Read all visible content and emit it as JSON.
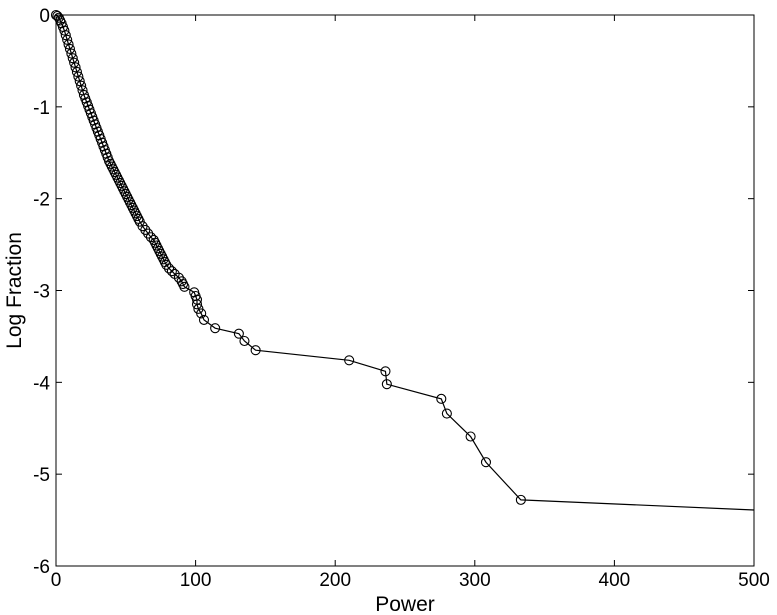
{
  "chart_data": {
    "type": "line",
    "title": "",
    "xlabel": "Power",
    "ylabel": "Log Fraction",
    "xlim": [
      0,
      500
    ],
    "ylim": [
      -6,
      0
    ],
    "xticks": [
      0,
      100,
      200,
      300,
      400,
      500
    ],
    "xtick_labels": [
      "0",
      "100",
      "200",
      "300",
      "400",
      "500"
    ],
    "yticks": [
      0,
      -1,
      -2,
      -3,
      -4,
      -5,
      -6
    ],
    "ytick_labels": [
      "0",
      "-1",
      "-2",
      "-3",
      "-4",
      "-5",
      "-6"
    ],
    "grid": false,
    "line_color": "#000000",
    "marker": "open-circle",
    "series": [
      {
        "x": [
          0,
          1,
          2,
          3,
          4,
          5,
          6,
          7,
          8,
          9,
          10,
          11,
          12,
          13,
          14,
          15,
          16,
          17,
          18,
          19,
          20,
          21,
          22,
          23,
          24,
          25,
          26,
          27,
          28,
          29,
          30,
          31,
          32,
          33,
          34,
          35,
          36,
          37,
          38,
          39,
          40,
          41,
          42,
          43,
          44,
          45,
          46,
          47,
          48,
          49,
          50,
          51,
          52,
          53,
          54,
          55,
          56,
          57,
          58,
          59,
          60,
          62,
          64,
          66,
          68,
          70,
          71,
          72,
          73,
          74,
          75,
          76,
          77,
          78,
          79,
          81,
          83,
          85,
          88,
          90,
          91,
          92,
          99,
          100,
          101,
          101,
          102,
          104,
          106,
          114,
          131,
          135,
          143,
          210,
          236,
          237,
          276,
          280,
          297,
          308,
          333,
          500
        ],
        "y": [
          0.0,
          -0.01,
          -0.03,
          -0.06,
          -0.09,
          -0.13,
          -0.17,
          -0.22,
          -0.27,
          -0.32,
          -0.37,
          -0.42,
          -0.47,
          -0.52,
          -0.57,
          -0.62,
          -0.67,
          -0.72,
          -0.77,
          -0.82,
          -0.87,
          -0.91,
          -0.95,
          -0.99,
          -1.03,
          -1.07,
          -1.11,
          -1.15,
          -1.19,
          -1.23,
          -1.27,
          -1.31,
          -1.35,
          -1.39,
          -1.43,
          -1.47,
          -1.51,
          -1.55,
          -1.59,
          -1.62,
          -1.65,
          -1.68,
          -1.71,
          -1.74,
          -1.77,
          -1.8,
          -1.83,
          -1.86,
          -1.89,
          -1.92,
          -1.95,
          -1.98,
          -2.01,
          -2.04,
          -2.07,
          -2.1,
          -2.13,
          -2.16,
          -2.19,
          -2.22,
          -2.25,
          -2.3,
          -2.34,
          -2.38,
          -2.42,
          -2.45,
          -2.48,
          -2.51,
          -2.54,
          -2.57,
          -2.6,
          -2.63,
          -2.66,
          -2.69,
          -2.72,
          -2.76,
          -2.79,
          -2.82,
          -2.86,
          -2.9,
          -2.93,
          -2.96,
          -3.02,
          -3.06,
          -3.1,
          -3.15,
          -3.2,
          -3.25,
          -3.32,
          -3.41,
          -3.47,
          -3.55,
          -3.65,
          -3.76,
          -3.88,
          -4.02,
          -4.18,
          -4.34,
          -4.59,
          -4.87,
          -5.28,
          -5.39
        ]
      }
    ]
  }
}
